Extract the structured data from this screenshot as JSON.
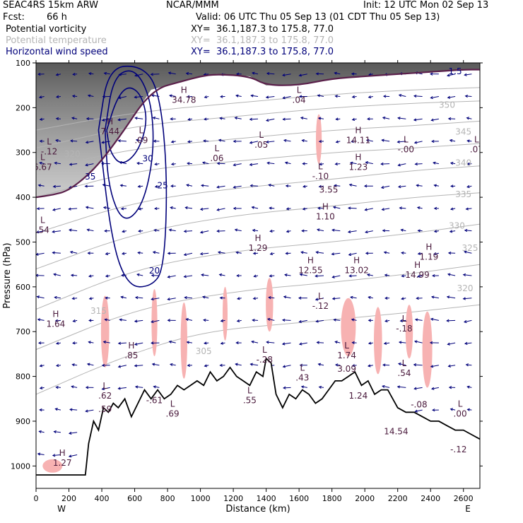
{
  "header": {
    "model": "SEAC4RS 15km ARW",
    "org": "NCAR/MMM",
    "init": "Init: 12 UTC Mon 02 Sep 13",
    "fcst_label": "Fcst:",
    "fcst_value": "66 h",
    "valid": "Valid: 06 UTC Thu 05 Sep 13 (01 CDT Thu 05 Sep 13)",
    "fields": [
      {
        "name": "Potential vorticity",
        "xy": "XY=  36.1,187.3 to 175.8, 77.0",
        "color": "#000000"
      },
      {
        "name": "Potential temperature",
        "xy": "XY=  36.1,187.3 to 175.8, 77.0",
        "color": "#b4b4b4"
      },
      {
        "name": "Horizontal wind speed",
        "xy": "XY=  36.1,187.3 to 175.8, 77.0",
        "color": "#00007a"
      }
    ]
  },
  "chart_data": {
    "type": "cross-section",
    "xlabel": "Distance (km)",
    "ylabel": "Pressure (hPa)",
    "xlim": [
      0,
      2700
    ],
    "ylim": [
      1050,
      100
    ],
    "x_ticks": [
      0,
      200,
      400,
      600,
      800,
      1000,
      1200,
      1400,
      1600,
      1800,
      2000,
      2200,
      2400,
      2600
    ],
    "y_ticks": [
      100,
      200,
      300,
      400,
      500,
      600,
      700,
      800,
      900,
      1000
    ],
    "x_ends": {
      "left": "W",
      "right": "E"
    },
    "colors": {
      "pv_shade": "#555555",
      "pv_pos": "#f7b2b2",
      "theta": "#b4b4b4",
      "wind": "#00007a",
      "pv2": "#5a1f4a",
      "terrain": "#000000"
    },
    "terrain": [
      [
        0,
        1020
      ],
      [
        150,
        1020
      ],
      [
        300,
        1020
      ],
      [
        320,
        950
      ],
      [
        350,
        900
      ],
      [
        380,
        920
      ],
      [
        410,
        870
      ],
      [
        440,
        880
      ],
      [
        470,
        860
      ],
      [
        500,
        870
      ],
      [
        540,
        850
      ],
      [
        580,
        890
      ],
      [
        620,
        860
      ],
      [
        660,
        830
      ],
      [
        700,
        850
      ],
      [
        740,
        830
      ],
      [
        780,
        850
      ],
      [
        820,
        840
      ],
      [
        860,
        820
      ],
      [
        900,
        830
      ],
      [
        940,
        820
      ],
      [
        980,
        810
      ],
      [
        1020,
        820
      ],
      [
        1060,
        790
      ],
      [
        1100,
        810
      ],
      [
        1140,
        800
      ],
      [
        1180,
        780
      ],
      [
        1220,
        800
      ],
      [
        1260,
        810
      ],
      [
        1300,
        820
      ],
      [
        1340,
        790
      ],
      [
        1380,
        800
      ],
      [
        1400,
        760
      ],
      [
        1430,
        770
      ],
      [
        1460,
        840
      ],
      [
        1500,
        870
      ],
      [
        1540,
        840
      ],
      [
        1580,
        850
      ],
      [
        1620,
        830
      ],
      [
        1660,
        840
      ],
      [
        1700,
        860
      ],
      [
        1740,
        850
      ],
      [
        1780,
        830
      ],
      [
        1820,
        810
      ],
      [
        1860,
        810
      ],
      [
        1900,
        800
      ],
      [
        1940,
        790
      ],
      [
        1980,
        820
      ],
      [
        2020,
        810
      ],
      [
        2060,
        840
      ],
      [
        2100,
        830
      ],
      [
        2140,
        830
      ],
      [
        2200,
        870
      ],
      [
        2250,
        880
      ],
      [
        2300,
        880
      ],
      [
        2350,
        890
      ],
      [
        2400,
        900
      ],
      [
        2450,
        900
      ],
      [
        2500,
        910
      ],
      [
        2550,
        920
      ],
      [
        2600,
        920
      ],
      [
        2650,
        930
      ],
      [
        2700,
        940
      ]
    ],
    "wind_speed_contours": [
      {
        "level": 30,
        "points": [
          [
            430,
            250
          ],
          [
            490,
            180
          ],
          [
            560,
            150
          ],
          [
            640,
            170
          ],
          [
            680,
            230
          ],
          [
            620,
            300
          ],
          [
            520,
            330
          ],
          [
            450,
            300
          ],
          [
            430,
            250
          ]
        ]
      },
      {
        "level": 25,
        "points": [
          [
            420,
            250
          ],
          [
            470,
            130
          ],
          [
            600,
            110
          ],
          [
            700,
            180
          ],
          [
            720,
            300
          ],
          [
            650,
            420
          ],
          [
            530,
            460
          ],
          [
            440,
            380
          ],
          [
            420,
            250
          ]
        ]
      },
      {
        "level": 20,
        "points": [
          [
            380,
            250
          ],
          [
            440,
            110
          ],
          [
            640,
            105
          ],
          [
            750,
            160
          ],
          [
            800,
            350
          ],
          [
            780,
            560
          ],
          [
            700,
            600
          ],
          [
            560,
            600
          ],
          [
            460,
            500
          ],
          [
            380,
            250
          ]
        ]
      }
    ],
    "pv2_tropopause": [
      [
        0,
        400
      ],
      [
        100,
        395
      ],
      [
        200,
        385
      ],
      [
        350,
        340
      ],
      [
        500,
        270
      ],
      [
        700,
        160
      ],
      [
        900,
        140
      ],
      [
        1000,
        130
      ],
      [
        1100,
        125
      ],
      [
        1300,
        130
      ],
      [
        1400,
        150
      ],
      [
        1600,
        150
      ],
      [
        1800,
        135
      ],
      [
        2000,
        130
      ],
      [
        2200,
        125
      ],
      [
        2400,
        120
      ],
      [
        2600,
        115
      ],
      [
        2700,
        115
      ]
    ],
    "theta_lines": [
      {
        "label": "320",
        "points": [
          [
            0,
            650
          ],
          [
            600,
            560
          ],
          [
            1200,
            520
          ],
          [
            1800,
            500
          ],
          [
            2300,
            480
          ],
          [
            2700,
            460
          ]
        ]
      },
      {
        "label": "325",
        "points": [
          [
            0,
            560
          ],
          [
            600,
            480
          ],
          [
            1200,
            440
          ],
          [
            1800,
            420
          ],
          [
            2300,
            400
          ],
          [
            2700,
            390
          ]
        ]
      },
      {
        "label": "330",
        "points": [
          [
            0,
            480
          ],
          [
            600,
            410
          ],
          [
            1200,
            380
          ],
          [
            1800,
            360
          ],
          [
            2300,
            340
          ],
          [
            2700,
            330
          ]
        ]
      },
      {
        "label": "335",
        "points": [
          [
            0,
            400
          ],
          [
            600,
            340
          ],
          [
            1200,
            320
          ],
          [
            1800,
            300
          ],
          [
            2300,
            290
          ],
          [
            2700,
            280
          ]
        ]
      },
      {
        "label": "340",
        "points": [
          [
            0,
            340
          ],
          [
            600,
            290
          ],
          [
            1200,
            270
          ],
          [
            1800,
            250
          ],
          [
            2300,
            240
          ],
          [
            2700,
            230
          ]
        ]
      },
      {
        "label": "345",
        "points": [
          [
            0,
            290
          ],
          [
            600,
            240
          ],
          [
            1200,
            220
          ],
          [
            1800,
            200
          ],
          [
            2300,
            190
          ],
          [
            2700,
            185
          ]
        ]
      },
      {
        "label": "350",
        "points": [
          [
            0,
            250
          ],
          [
            600,
            210
          ],
          [
            1200,
            190
          ],
          [
            1800,
            170
          ],
          [
            2300,
            160
          ],
          [
            2700,
            155
          ]
        ]
      },
      {
        "label": "315",
        "points": [
          [
            0,
            740
          ],
          [
            600,
            650
          ],
          [
            1200,
            610
          ],
          [
            1800,
            590
          ],
          [
            2300,
            570
          ],
          [
            2700,
            550
          ]
        ]
      },
      {
        "label": "310",
        "points": [
          [
            0,
            840
          ],
          [
            500,
            760
          ],
          [
            1000,
            700
          ],
          [
            1600,
            680
          ],
          [
            2200,
            660
          ],
          [
            2700,
            640
          ]
        ]
      }
    ],
    "pv_positive_blobs": [
      {
        "x": 420,
        "p": 700,
        "w": 50,
        "h": 160
      },
      {
        "x": 720,
        "p": 680,
        "w": 35,
        "h": 150
      },
      {
        "x": 900,
        "p": 720,
        "w": 40,
        "h": 170
      },
      {
        "x": 1150,
        "p": 660,
        "w": 30,
        "h": 120
      },
      {
        "x": 1420,
        "p": 640,
        "w": 45,
        "h": 120
      },
      {
        "x": 1720,
        "p": 270,
        "w": 35,
        "h": 110
      },
      {
        "x": 1900,
        "p": 690,
        "w": 90,
        "h": 130
      },
      {
        "x": 2080,
        "p": 720,
        "w": 50,
        "h": 150
      },
      {
        "x": 2270,
        "p": 700,
        "w": 45,
        "h": 120
      },
      {
        "x": 2380,
        "p": 740,
        "w": 60,
        "h": 170
      },
      {
        "x": 100,
        "p": 1000,
        "w": 120,
        "h": 30
      }
    ],
    "pv_shading": {
      "p_top": 100,
      "p_bottom_left": 400,
      "note": "dark grey high-PV shading near top"
    },
    "wind_grid": {
      "x_spacing": 100,
      "p_spacing": 50
    },
    "hl_labels": [
      {
        "hl": "H",
        "value": "34.78",
        "x": 900,
        "p": 180
      },
      {
        "hl": "H",
        "value": "7.44",
        "x": 450,
        "p": 250
      },
      {
        "hl": "L",
        "value": "6.67",
        "x": 40,
        "p": 330
      },
      {
        "hl": "L",
        "value": ".09",
        "x": 640,
        "p": 270
      },
      {
        "hl": "L",
        "value": ".06",
        "x": 1100,
        "p": 310
      },
      {
        "hl": "L",
        "value": ".05",
        "x": 1370,
        "p": 280
      },
      {
        "hl": "L",
        "value": ".04",
        "x": 1600,
        "p": 180
      },
      {
        "hl": "H",
        "value": "14.11",
        "x": 1960,
        "p": 270
      },
      {
        "hl": "H",
        "value": "1.23",
        "x": 1960,
        "p": 330
      },
      {
        "hl": "L",
        "value": "-.00",
        "x": 2250,
        "p": 290
      },
      {
        "hl": "L",
        "value": ".07",
        "x": 2680,
        "p": 290
      },
      {
        "hl": "L",
        "value": "-.10",
        "x": 1730,
        "p": 350
      },
      {
        "hl": "",
        "value": "3.55",
        "x": 1780,
        "p": 380
      },
      {
        "hl": "H",
        "value": "1.10",
        "x": 1760,
        "p": 440
      },
      {
        "hl": "H",
        "value": "1.29",
        "x": 1350,
        "p": 510
      },
      {
        "hl": "H",
        "value": "12.55",
        "x": 1670,
        "p": 560
      },
      {
        "hl": "H",
        "value": "13.02",
        "x": 1950,
        "p": 560
      },
      {
        "hl": "H",
        "value": "14.99",
        "x": 2320,
        "p": 570
      },
      {
        "hl": "H",
        "value": "1.19",
        "x": 2390,
        "p": 530
      },
      {
        "hl": "L",
        "value": "-.12",
        "x": 1730,
        "p": 640
      },
      {
        "hl": "H",
        "value": "1.64",
        "x": 120,
        "p": 680
      },
      {
        "hl": "H",
        "value": ".85",
        "x": 580,
        "p": 750
      },
      {
        "hl": "L",
        "value": "-.28",
        "x": 1390,
        "p": 760
      },
      {
        "hl": "L",
        "value": ".43",
        "x": 1620,
        "p": 800
      },
      {
        "hl": "L",
        "value": "1.74",
        "x": 1890,
        "p": 750
      },
      {
        "hl": "",
        "value": "3.09",
        "x": 1890,
        "p": 780
      },
      {
        "hl": "L",
        "value": "-.18",
        "x": 2240,
        "p": 690
      },
      {
        "hl": "L",
        "value": ".54",
        "x": 2240,
        "p": 790
      },
      {
        "hl": "",
        "value": "-.08",
        "x": 2330,
        "p": 860
      },
      {
        "hl": "L",
        "value": ".00",
        "x": 2580,
        "p": 880
      },
      {
        "hl": "",
        "value": "-.12",
        "x": 2570,
        "p": 960
      },
      {
        "hl": "",
        "value": "1.24",
        "x": 1960,
        "p": 840
      },
      {
        "hl": "",
        "value": "14.54",
        "x": 2190,
        "p": 920
      },
      {
        "hl": "L",
        "value": ".62",
        "x": 420,
        "p": 840
      },
      {
        "hl": "",
        "value": ".59",
        "x": 420,
        "p": 870
      },
      {
        "hl": "",
        "value": "-.61",
        "x": 720,
        "p": 850
      },
      {
        "hl": "L",
        "value": ".69",
        "x": 830,
        "p": 880
      },
      {
        "hl": "L",
        "value": ".55",
        "x": 1300,
        "p": 850
      },
      {
        "hl": "H",
        "value": "1.27",
        "x": 160,
        "p": 990
      },
      {
        "hl": "L",
        "value": ".54",
        "x": 40,
        "p": 470
      },
      {
        "hl": "L",
        "value": "-.12",
        "x": 80,
        "p": 295
      }
    ],
    "contour_labels": [
      {
        "text": "35",
        "x": 330,
        "p": 360
      },
      {
        "text": "30",
        "x": 680,
        "p": 320
      },
      {
        "text": "25",
        "x": 770,
        "p": 380
      },
      {
        "text": "20",
        "x": 720,
        "p": 570
      },
      {
        "text": "1.5",
        "x": 2550,
        "p": 125
      },
      {
        "text": "320",
        "x": 2610,
        "p": 610
      },
      {
        "text": "325",
        "x": 2640,
        "p": 520
      },
      {
        "text": "330",
        "x": 2560,
        "p": 470
      },
      {
        "text": "335",
        "x": 2600,
        "p": 400
      },
      {
        "text": "340",
        "x": 2600,
        "p": 330
      },
      {
        "text": "345",
        "x": 2600,
        "p": 260
      },
      {
        "text": "350",
        "x": 2500,
        "p": 200
      },
      {
        "text": "315",
        "x": 380,
        "p": 660
      },
      {
        "text": "320",
        "x": 220,
        "p": 310
      },
      {
        "text": "305",
        "x": 1020,
        "p": 750
      }
    ]
  }
}
